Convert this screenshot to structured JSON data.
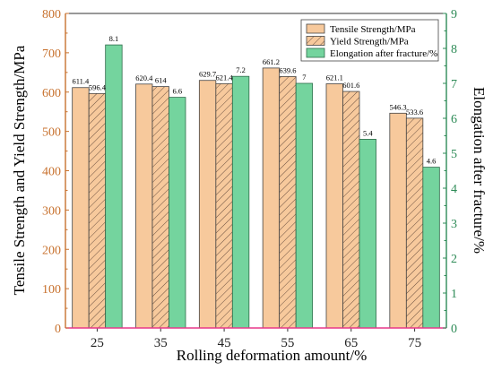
{
  "chart_data": {
    "type": "bar",
    "categories": [
      "25",
      "35",
      "45",
      "55",
      "65",
      "75"
    ],
    "series": [
      {
        "name": "Tensile Strength/MPa",
        "axis": "left",
        "values": [
          611.4,
          620.4,
          629.7,
          661.2,
          621.1,
          546.3
        ],
        "labels": [
          "611.4",
          "620.4",
          "629.7",
          "661.2",
          "621.1",
          "546.3"
        ],
        "color": "#f7c99c"
      },
      {
        "name": "Yield Strength/MPa",
        "axis": "left",
        "values": [
          596.4,
          614,
          621.4,
          639.6,
          601.6,
          533.6
        ],
        "labels": [
          "596.4",
          "614",
          "621.4",
          "639.6",
          "601.6",
          "533.6"
        ],
        "color": "#f7c99c",
        "pattern": "hatch"
      },
      {
        "name": "Elongation after fracture/%",
        "axis": "right",
        "values": [
          8.1,
          6.6,
          7.2,
          7,
          5.4,
          4.6
        ],
        "labels": [
          "8.1",
          "6.6",
          "7.2",
          "7",
          "5.4",
          "4.6"
        ],
        "color": "#74d49e"
      }
    ],
    "xlabel": "Rolling deformation amount/%",
    "ylabel": "Tensile Strength and Yield Strength/MPa",
    "y2label": "Elongation after fracture/%",
    "ylim": [
      0,
      800
    ],
    "y2lim": [
      0,
      9
    ],
    "yticks": [
      "0",
      "100",
      "200",
      "300",
      "400",
      "500",
      "600",
      "700",
      "800"
    ],
    "y2ticks": [
      "0",
      "1",
      "2",
      "3",
      "4",
      "5",
      "6",
      "7",
      "8",
      "9"
    ],
    "legend_position": "top-right",
    "grid": false,
    "left_axis_color": "#c8722f",
    "right_axis_color": "#2e8b57",
    "baseline_color": "#e8398a"
  }
}
